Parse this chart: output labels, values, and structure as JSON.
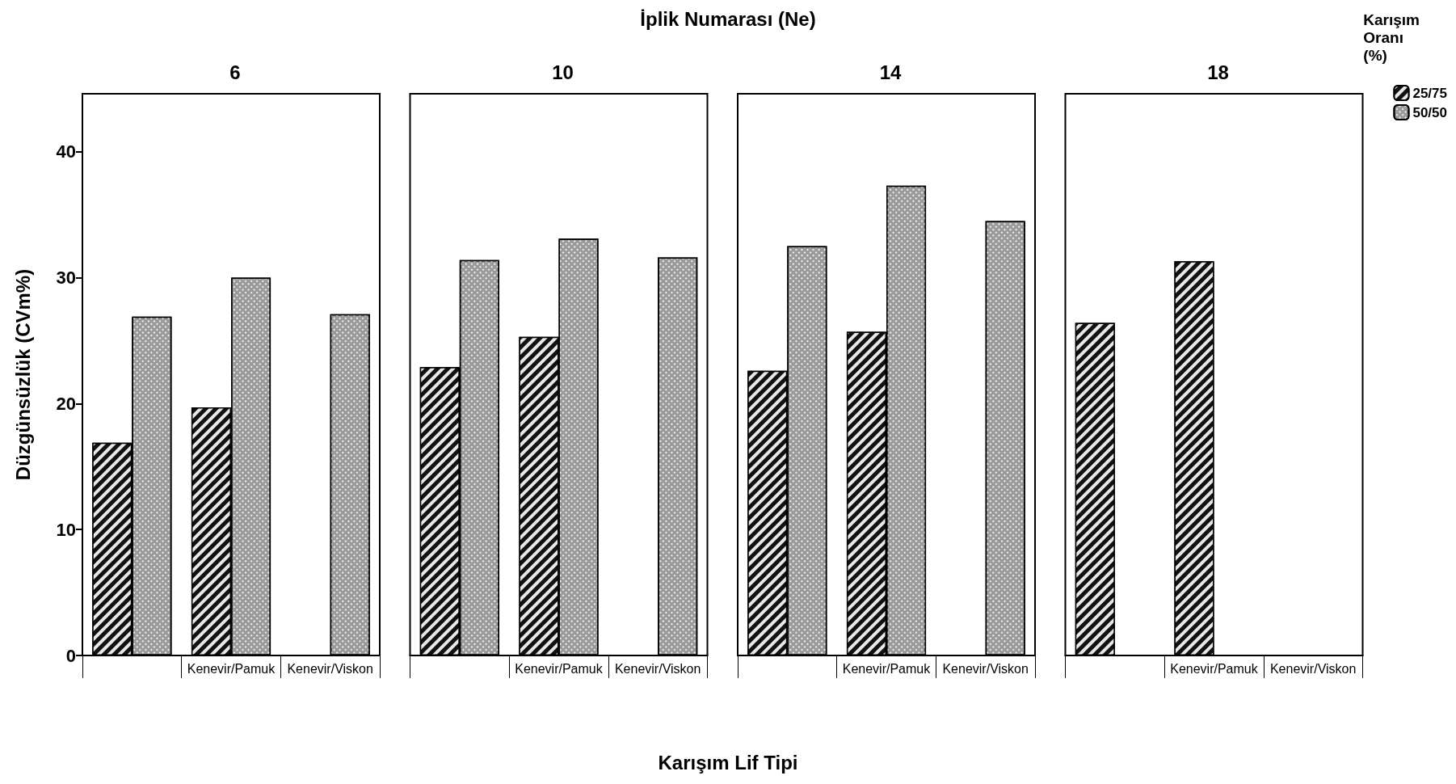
{
  "chart_data": [
    {
      "type": "bar",
      "title": "6",
      "annotations": [
        "İplik Numarası (Ne)",
        "Karışım Lif Tipi"
      ],
      "ylabel": "Düzgünsüzlük (CVm%)",
      "categories": [
        null,
        "Kenevir/Pamuk",
        "Kenevir/Viskon"
      ],
      "ylim": [
        0,
        44.6
      ],
      "yticks": [
        0,
        10,
        20,
        30,
        40
      ],
      "grid": false,
      "legend": false,
      "series": [
        {
          "color": "#111111",
          "values": [
            16.9,
            19.7,
            null
          ]
        },
        {
          "color": "#9a9a9a",
          "values": [
            26.9,
            30.0,
            27.1
          ]
        }
      ]
    },
    {
      "type": "bar",
      "title": "10",
      "categories": [
        null,
        "Kenevir/Pamuk",
        "Kenevir/Viskon"
      ],
      "ylim": [
        0,
        44.6
      ],
      "yticks": [
        0,
        10,
        20,
        30,
        40
      ],
      "tick_labels": "x",
      "grid": false,
      "legend": false,
      "series": [
        {
          "color": "#111111",
          "values": [
            22.9,
            25.3,
            null
          ]
        },
        {
          "color": "#9a9a9a",
          "values": [
            31.4,
            33.1,
            31.6
          ]
        }
      ]
    },
    {
      "type": "bar",
      "title": "14",
      "categories": [
        null,
        "Kenevir/Pamuk",
        "Kenevir/Viskon"
      ],
      "ylim": [
        0,
        44.6
      ],
      "yticks": [
        0,
        10,
        20,
        30,
        40
      ],
      "tick_labels": "x",
      "grid": false,
      "legend": false,
      "series": [
        {
          "color": "#111111",
          "values": [
            22.6,
            25.7,
            null
          ]
        },
        {
          "color": "#9a9a9a",
          "values": [
            32.5,
            37.3,
            34.5
          ]
        }
      ]
    },
    {
      "type": "bar",
      "title": "18",
      "categories": [
        null,
        "Kenevir/Pamuk",
        "Kenevir/Viskon"
      ],
      "ylim": [
        0,
        44.6
      ],
      "yticks": [
        0,
        10,
        20,
        30,
        40
      ],
      "tick_labels": "x",
      "grid": false,
      "legend": "right",
      "legend_title": "Karışım Oranı (%)",
      "series": [
        {
          "name": "25/75",
          "color": "#111111",
          "values": [
            26.4,
            31.3,
            null
          ]
        },
        {
          "name": "50/50",
          "color": "#9a9a9a",
          "values": [
            null,
            null,
            null
          ]
        }
      ]
    }
  ]
}
